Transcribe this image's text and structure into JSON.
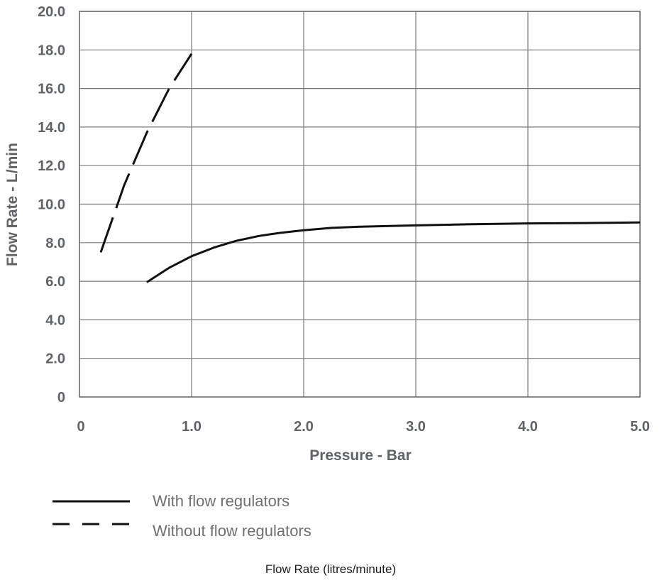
{
  "chart_data": {
    "type": "line",
    "xlabel": "Pressure - Bar",
    "ylabel": "Flow Rate - L/min",
    "xlim": [
      0,
      5.0
    ],
    "ylim": [
      0,
      20.0
    ],
    "x_ticks": [
      "0",
      "1.0",
      "2.0",
      "3.0",
      "4.0",
      "5.0"
    ],
    "y_ticks": [
      "0",
      "2.0",
      "4.0",
      "6.0",
      "8.0",
      "10.0",
      "12.0",
      "14.0",
      "16.0",
      "18.0",
      "20.0"
    ],
    "grid": true,
    "legend_position": "bottom-left",
    "series": [
      {
        "name": "With flow regulators",
        "line_style": "solid",
        "color": "#111111",
        "points": [
          [
            0.6,
            5.95
          ],
          [
            0.8,
            6.7
          ],
          [
            1.0,
            7.3
          ],
          [
            1.2,
            7.75
          ],
          [
            1.4,
            8.1
          ],
          [
            1.6,
            8.35
          ],
          [
            1.8,
            8.52
          ],
          [
            2.0,
            8.65
          ],
          [
            2.25,
            8.77
          ],
          [
            2.5,
            8.83
          ],
          [
            3.0,
            8.9
          ],
          [
            3.5,
            8.96
          ],
          [
            4.0,
            9.0
          ],
          [
            4.5,
            9.02
          ],
          [
            5.0,
            9.05
          ]
        ]
      },
      {
        "name": "Without flow regulators",
        "line_style": "dashed",
        "color": "#111111",
        "points": [
          [
            0.19,
            7.5
          ],
          [
            0.4,
            11.0
          ],
          [
            0.6,
            13.7
          ],
          [
            0.8,
            16.0
          ],
          [
            1.0,
            17.8
          ]
        ]
      }
    ]
  },
  "caption": "Flow Rate (litres/minute)"
}
